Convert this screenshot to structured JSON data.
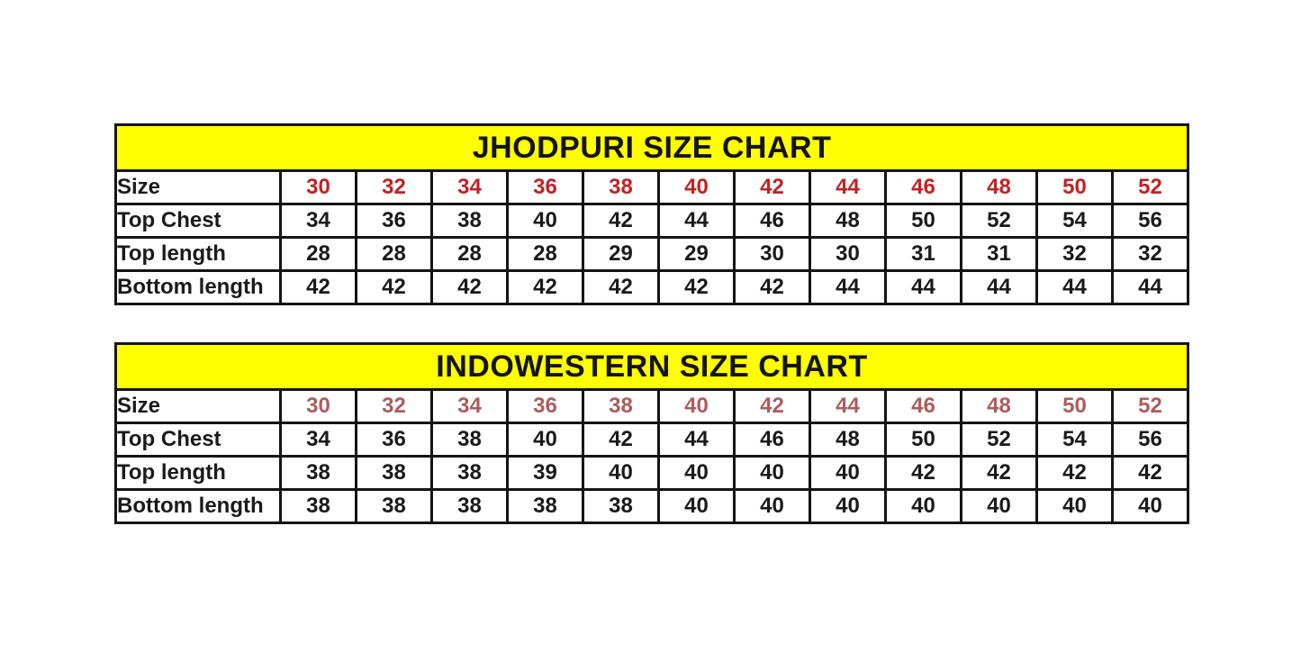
{
  "page": {
    "background": "#ffffff",
    "text_color": "#1a1a1a",
    "border_color": "#141414"
  },
  "chart_data": [
    {
      "type": "table",
      "title": "JHODPURI SIZE CHART",
      "title_bg": "#ffff00",
      "title_color": "#141414",
      "size_value_color": "#c22222",
      "value_color": "#1a1a1a",
      "rows": [
        {
          "label": "Size",
          "values": [
            30,
            32,
            34,
            36,
            38,
            40,
            42,
            44,
            46,
            48,
            50,
            52
          ]
        },
        {
          "label": "Top Chest",
          "values": [
            34,
            36,
            38,
            40,
            42,
            44,
            46,
            48,
            50,
            52,
            54,
            56
          ]
        },
        {
          "label": "Top length",
          "values": [
            28,
            28,
            28,
            28,
            29,
            29,
            30,
            30,
            31,
            31,
            32,
            32
          ]
        },
        {
          "label": "Bottom length",
          "values": [
            42,
            42,
            42,
            42,
            42,
            42,
            42,
            44,
            44,
            44,
            44,
            44
          ]
        }
      ]
    },
    {
      "type": "table",
      "title": "INDOWESTERN SIZE CHART",
      "title_bg": "#ffff00",
      "title_color": "#141414",
      "size_value_color": "#ad5c5c",
      "value_color": "#1a1a1a",
      "rows": [
        {
          "label": "Size",
          "values": [
            30,
            32,
            34,
            36,
            38,
            40,
            42,
            44,
            46,
            48,
            50,
            52
          ]
        },
        {
          "label": "Top Chest",
          "values": [
            34,
            36,
            38,
            40,
            42,
            44,
            46,
            48,
            50,
            52,
            54,
            56
          ]
        },
        {
          "label": "Top length",
          "values": [
            38,
            38,
            38,
            39,
            40,
            40,
            40,
            40,
            42,
            42,
            42,
            42
          ]
        },
        {
          "label": "Bottom length",
          "values": [
            38,
            38,
            38,
            38,
            38,
            40,
            40,
            40,
            40,
            40,
            40,
            40
          ]
        }
      ]
    }
  ]
}
